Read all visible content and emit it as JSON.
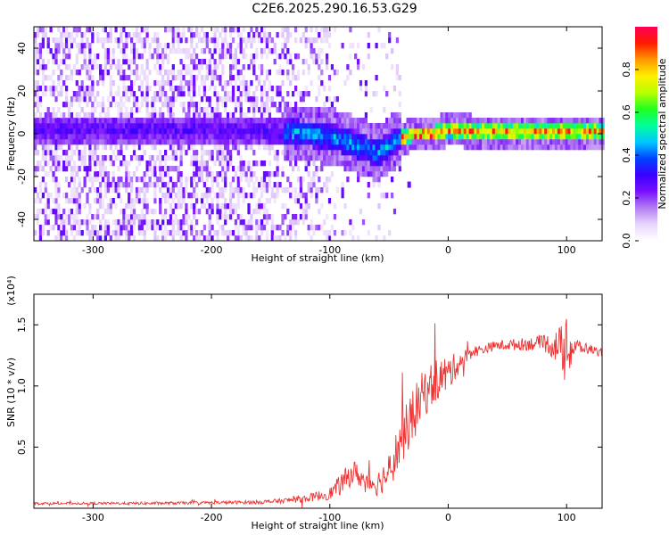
{
  "title": "C2E6.2025.290.16.53.G29",
  "colors": {
    "snr_line": "#ee3333",
    "frame": "#000000",
    "colormap": [
      "#ffffff",
      "#e8d6fb",
      "#b27ef3",
      "#7a10ff",
      "#3a00ff",
      "#0044ff",
      "#00c8ff",
      "#00ff9a",
      "#22ff22",
      "#b8ff00",
      "#ffee00",
      "#ff9900",
      "#ff1a00",
      "#ff0055"
    ]
  },
  "chart_data": [
    {
      "type": "heatmap",
      "xlabel": "Height of straight line (km)",
      "ylabel": "Frequency (Hz)",
      "xlim": [
        -350,
        130
      ],
      "ylim": [
        -50,
        50
      ],
      "xticks": [
        -300,
        -200,
        -100,
        0,
        100
      ],
      "yticks": [
        -40,
        -20,
        0,
        20,
        40
      ],
      "xtick_labels": [
        "-300",
        "-200",
        "-100",
        "0",
        "100"
      ],
      "ytick_labels": [
        "-40",
        "-20",
        "0",
        "20",
        "40"
      ],
      "colorbar": {
        "label": "Normalized spectral amplitude",
        "range": [
          0,
          1
        ],
        "ticks": [
          0.0,
          0.2,
          0.4,
          0.6,
          0.8
        ],
        "tick_labels": [
          "0.0",
          "0.2",
          "0.4",
          "0.6",
          "0.8"
        ]
      },
      "ridge": {
        "description_points_km_hz": [
          [
            -200,
            2
          ],
          [
            -150,
            1
          ],
          [
            -120,
            0
          ],
          [
            -100,
            -1
          ],
          [
            -80,
            -5
          ],
          [
            -60,
            -9
          ],
          [
            -45,
            -3
          ],
          [
            -30,
            0
          ],
          [
            -15,
            0
          ],
          [
            0,
            2
          ],
          [
            20,
            1
          ],
          [
            60,
            1
          ],
          [
            100,
            1
          ],
          [
            130,
            1
          ]
        ],
        "peak_amplitude": 1.0
      },
      "outlier": {
        "x": -33,
        "y": -24
      }
    },
    {
      "type": "line",
      "xlabel": "Height of straight line (km)",
      "ylabel": "SNR (10 * v/v)",
      "y_multiplier": "(x10⁴)",
      "xlim": [
        -350,
        130
      ],
      "ylim": [
        0,
        1.75
      ],
      "xticks": [
        -300,
        -200,
        -100,
        0,
        100
      ],
      "yticks": [
        0.5,
        1.0,
        1.5
      ],
      "xtick_labels": [
        "-300",
        "-200",
        "-100",
        "0",
        "100"
      ],
      "ytick_labels": [
        "0.5",
        "1.0",
        "1.5"
      ],
      "series": [
        {
          "name": "SNR",
          "x": [
            -350,
            -300,
            -250,
            -200,
            -160,
            -140,
            -120,
            -100,
            -90,
            -80,
            -70,
            -60,
            -50,
            -40,
            -30,
            -20,
            -10,
            0,
            10,
            20,
            30,
            40,
            60,
            80,
            90,
            100,
            110,
            120,
            130
          ],
          "y": [
            0.04,
            0.04,
            0.04,
            0.045,
            0.05,
            0.06,
            0.08,
            0.12,
            0.2,
            0.3,
            0.22,
            0.2,
            0.3,
            0.55,
            0.75,
            0.95,
            1.05,
            1.1,
            1.2,
            1.28,
            1.3,
            1.33,
            1.34,
            1.35,
            1.33,
            1.3,
            1.32,
            1.3,
            1.27
          ],
          "noise": [
            0.01,
            0.01,
            0.012,
            0.012,
            0.015,
            0.02,
            0.03,
            0.05,
            0.09,
            0.1,
            0.08,
            0.1,
            0.15,
            0.2,
            0.22,
            0.2,
            0.18,
            0.15,
            0.08,
            0.05,
            0.04,
            0.04,
            0.05,
            0.06,
            0.12,
            0.25,
            0.06,
            0.04,
            0.03
          ]
        }
      ]
    }
  ]
}
